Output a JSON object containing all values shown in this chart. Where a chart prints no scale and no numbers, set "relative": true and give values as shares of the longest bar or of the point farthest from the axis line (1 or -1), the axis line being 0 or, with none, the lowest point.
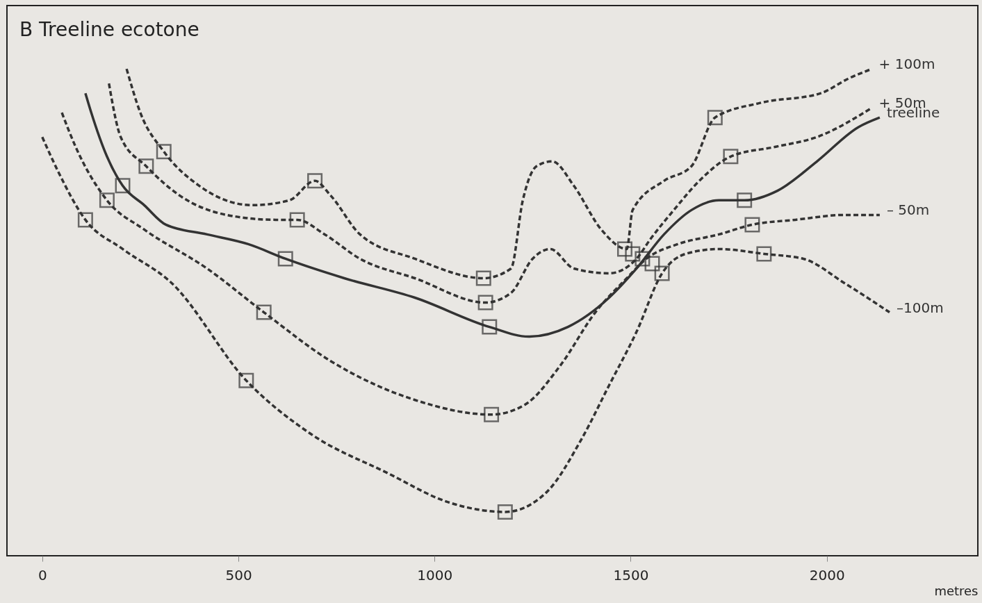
{
  "chart_data": {
    "type": "line",
    "title": "B  Treeline ecotone",
    "xlabel": "metres",
    "relative": true,
    "grid": false,
    "xlim": [
      -90,
      2385
    ],
    "xticks": [
      0,
      500,
      1000,
      1500,
      2000
    ],
    "series": [
      {
        "name": "+ 100m",
        "color": "#333333",
        "line_style": "dashed",
        "marker": "none",
        "x": [
          215,
          250,
          310,
          400,
          535,
          630,
          695,
          735,
          810,
          950,
          1125,
          1195,
          1225,
          1260,
          1300,
          1355,
          1425,
          1490,
          1505,
          1585,
          1655,
          1715,
          1830,
          1985,
          2055,
          2115
        ],
        "values": [
          1.0,
          0.91,
          0.83,
          0.76,
          0.72,
          0.73,
          0.77,
          0.74,
          0.66,
          0.61,
          0.57,
          0.59,
          0.73,
          0.8,
          0.81,
          0.76,
          0.67,
          0.63,
          0.71,
          0.77,
          0.8,
          0.9,
          0.93,
          0.95,
          0.98,
          1.0
        ]
      },
      {
        "name": "+ 50m",
        "color": "#333333",
        "line_style": "dashed",
        "marker": "none",
        "x": [
          170,
          200,
          265,
          350,
          470,
          595,
          650,
          720,
          810,
          950,
          1130,
          1195,
          1250,
          1295,
          1355,
          1445,
          1515,
          1550,
          1610,
          1675,
          1755,
          1870,
          1975,
          2115
        ],
        "values": [
          0.97,
          0.86,
          0.8,
          0.74,
          0.7,
          0.69,
          0.69,
          0.66,
          0.61,
          0.57,
          0.52,
          0.54,
          0.61,
          0.63,
          0.59,
          0.58,
          0.61,
          0.65,
          0.71,
          0.77,
          0.82,
          0.84,
          0.86,
          0.92
        ]
      },
      {
        "name": "treeline",
        "color": "#333333",
        "line_style": "solid",
        "marker": "none",
        "x": [
          110,
          125,
          165,
          205,
          260,
          315,
          420,
          525,
          620,
          770,
          950,
          1140,
          1240,
          1340,
          1445,
          1515,
          1585,
          1655,
          1725,
          1790,
          1875,
          1975,
          2080,
          2135
        ],
        "values": [
          0.95,
          0.91,
          0.82,
          0.76,
          0.72,
          0.68,
          0.66,
          0.64,
          0.61,
          0.57,
          0.53,
          0.47,
          0.45,
          0.47,
          0.53,
          0.59,
          0.66,
          0.71,
          0.73,
          0.73,
          0.75,
          0.81,
          0.88,
          0.9
        ]
      },
      {
        "name": "– 50m",
        "color": "#333333",
        "line_style": "dashed",
        "marker": "none",
        "x": [
          50,
          85,
          165,
          260,
          420,
          565,
          735,
          950,
          1145,
          1230,
          1320,
          1410,
          1490,
          1540,
          1620,
          1725,
          1810,
          1920,
          2045,
          2135
        ],
        "values": [
          0.91,
          0.84,
          0.73,
          0.67,
          0.59,
          0.5,
          0.4,
          0.32,
          0.29,
          0.31,
          0.39,
          0.5,
          0.57,
          0.61,
          0.64,
          0.66,
          0.68,
          0.69,
          0.7,
          0.7
        ]
      },
      {
        "name": "–100m",
        "color": "#333333",
        "line_style": "dashed",
        "marker": "none",
        "x": [
          0,
          40,
          110,
          205,
          330,
          520,
          685,
          880,
          1035,
          1180,
          1285,
          1375,
          1445,
          1515,
          1580,
          1640,
          1725,
          1840,
          1940,
          2045,
          2160
        ],
        "values": [
          0.86,
          0.79,
          0.69,
          0.63,
          0.56,
          0.36,
          0.25,
          0.17,
          0.11,
          0.09,
          0.13,
          0.24,
          0.35,
          0.46,
          0.58,
          0.62,
          0.63,
          0.62,
          0.61,
          0.56,
          0.5
        ]
      },
      {
        "type": "scatter",
        "color": "#333333",
        "marker": "square",
        "x": [
          110,
          165,
          205,
          265,
          310,
          695,
          650,
          620,
          565,
          520,
          1125,
          1130,
          1140,
          1145,
          1180,
          1485,
          1505,
          1530,
          1555,
          1580,
          1715,
          1755,
          1790,
          1810,
          1840
        ],
        "values": [
          0.69,
          0.73,
          0.76,
          0.8,
          0.83,
          0.77,
          0.69,
          0.61,
          0.5,
          0.36,
          0.57,
          0.52,
          0.47,
          0.29,
          0.09,
          0.63,
          0.62,
          0.61,
          0.6,
          0.58,
          0.9,
          0.82,
          0.73,
          0.68,
          0.62
        ]
      }
    ]
  }
}
